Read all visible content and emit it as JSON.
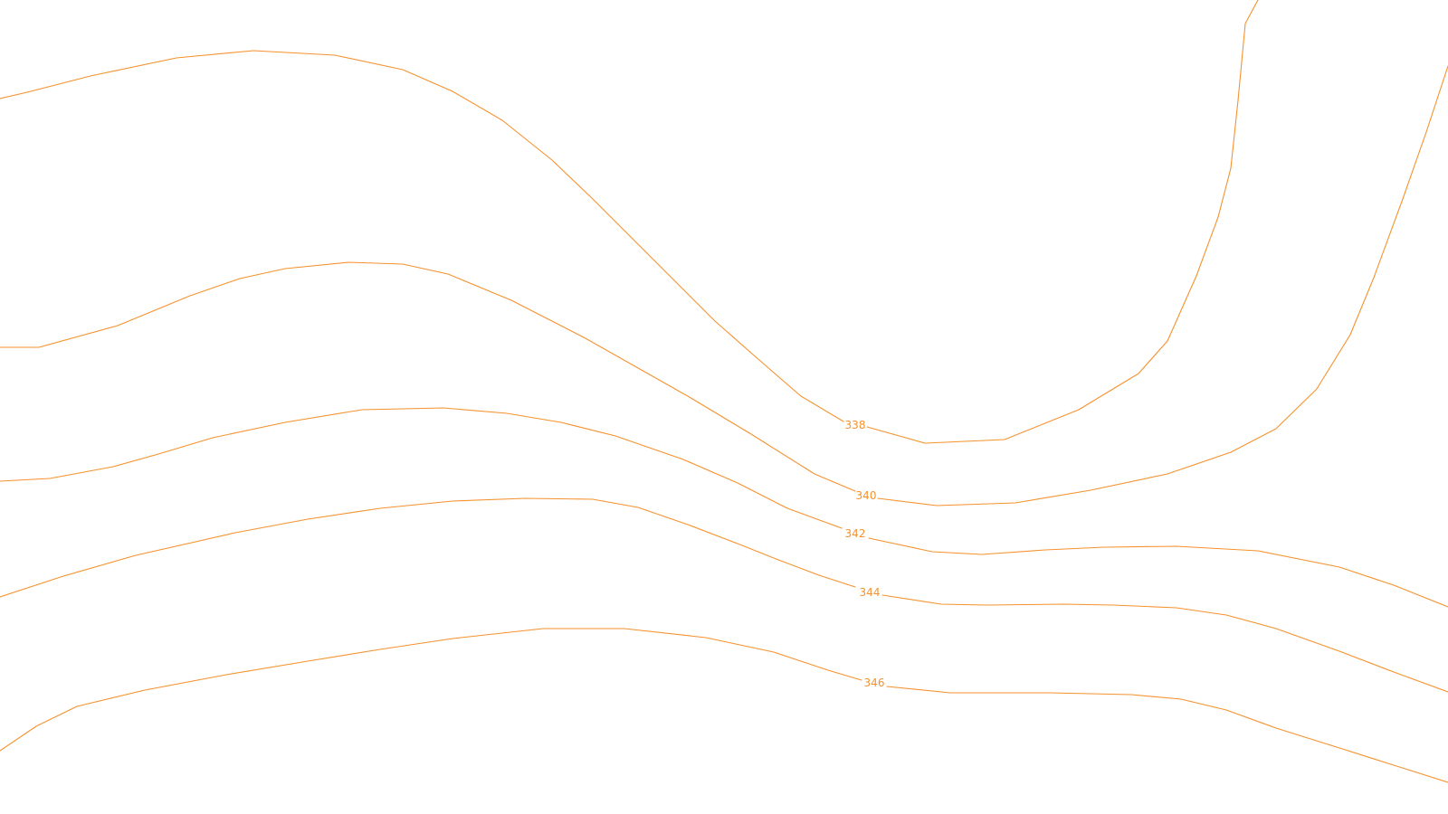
{
  "map": {
    "line_color": "#f5922f",
    "background": "#ffffff",
    "contours": [
      {
        "elevation": 338,
        "label": "338"
      },
      {
        "elevation": 340,
        "label": "340"
      },
      {
        "elevation": 342,
        "label": "342"
      },
      {
        "elevation": 344,
        "label": "344"
      },
      {
        "elevation": 346,
        "label": "346"
      }
    ]
  }
}
